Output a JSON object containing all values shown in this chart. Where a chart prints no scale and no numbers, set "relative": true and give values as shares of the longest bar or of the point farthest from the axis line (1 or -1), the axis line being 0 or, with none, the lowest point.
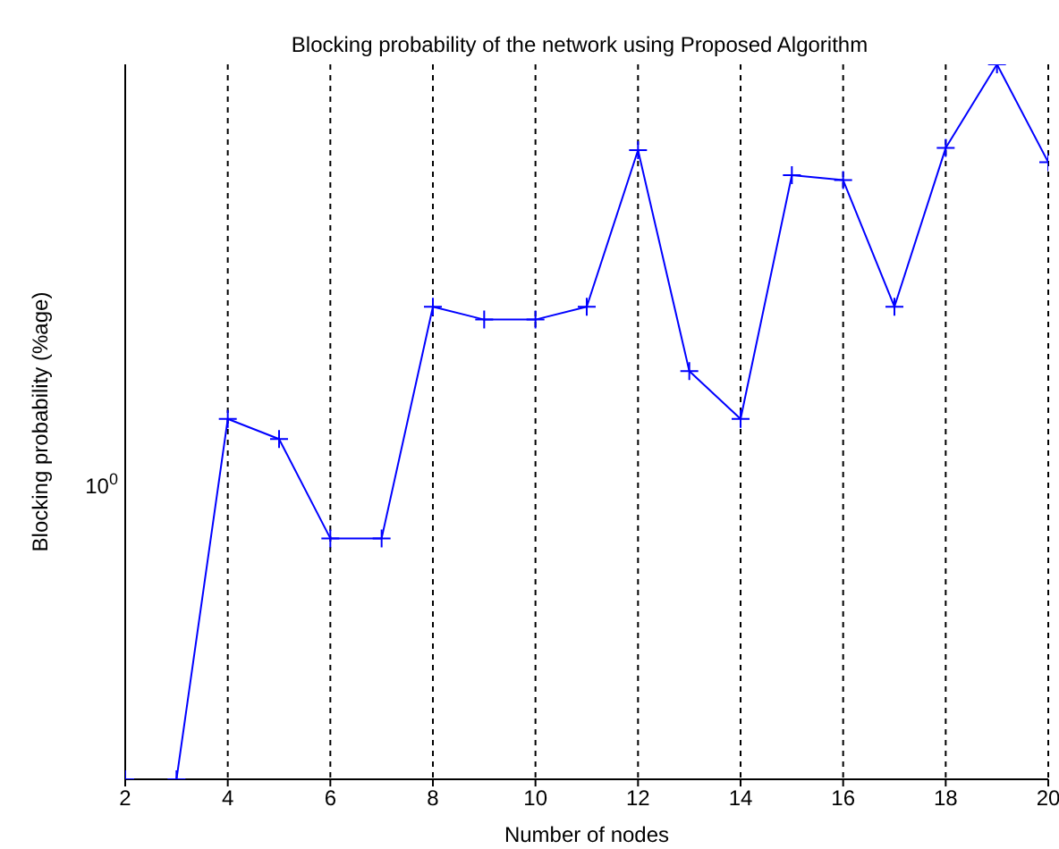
{
  "chart_data": {
    "type": "line",
    "title": "Blocking probability of the network using Proposed Algorithm",
    "xlabel": "Number of nodes",
    "ylabel": "Blocking probability (%age)",
    "x": [
      2,
      3,
      4,
      5,
      6,
      7,
      8,
      9,
      10,
      11,
      12,
      13,
      14,
      15,
      16,
      17,
      18,
      19,
      20
    ],
    "series": [
      {
        "color": "#0000ff",
        "values": [
          0,
          0,
          0.504,
          0.476,
          0.337,
          0.337,
          0.661,
          0.643,
          0.643,
          0.661,
          0.88,
          0.571,
          0.504,
          0.845,
          0.838,
          0.661,
          0.883,
          1,
          0.863
        ]
      }
    ],
    "relative": true,
    "xlim": [
      2,
      20
    ],
    "xticks": [
      2,
      4,
      6,
      8,
      10,
      12,
      14,
      16,
      18,
      20
    ],
    "annotations": [
      "10$^{0}$"
    ],
    "grid": "x",
    "marker": "cross",
    "line_style": "solid"
  }
}
